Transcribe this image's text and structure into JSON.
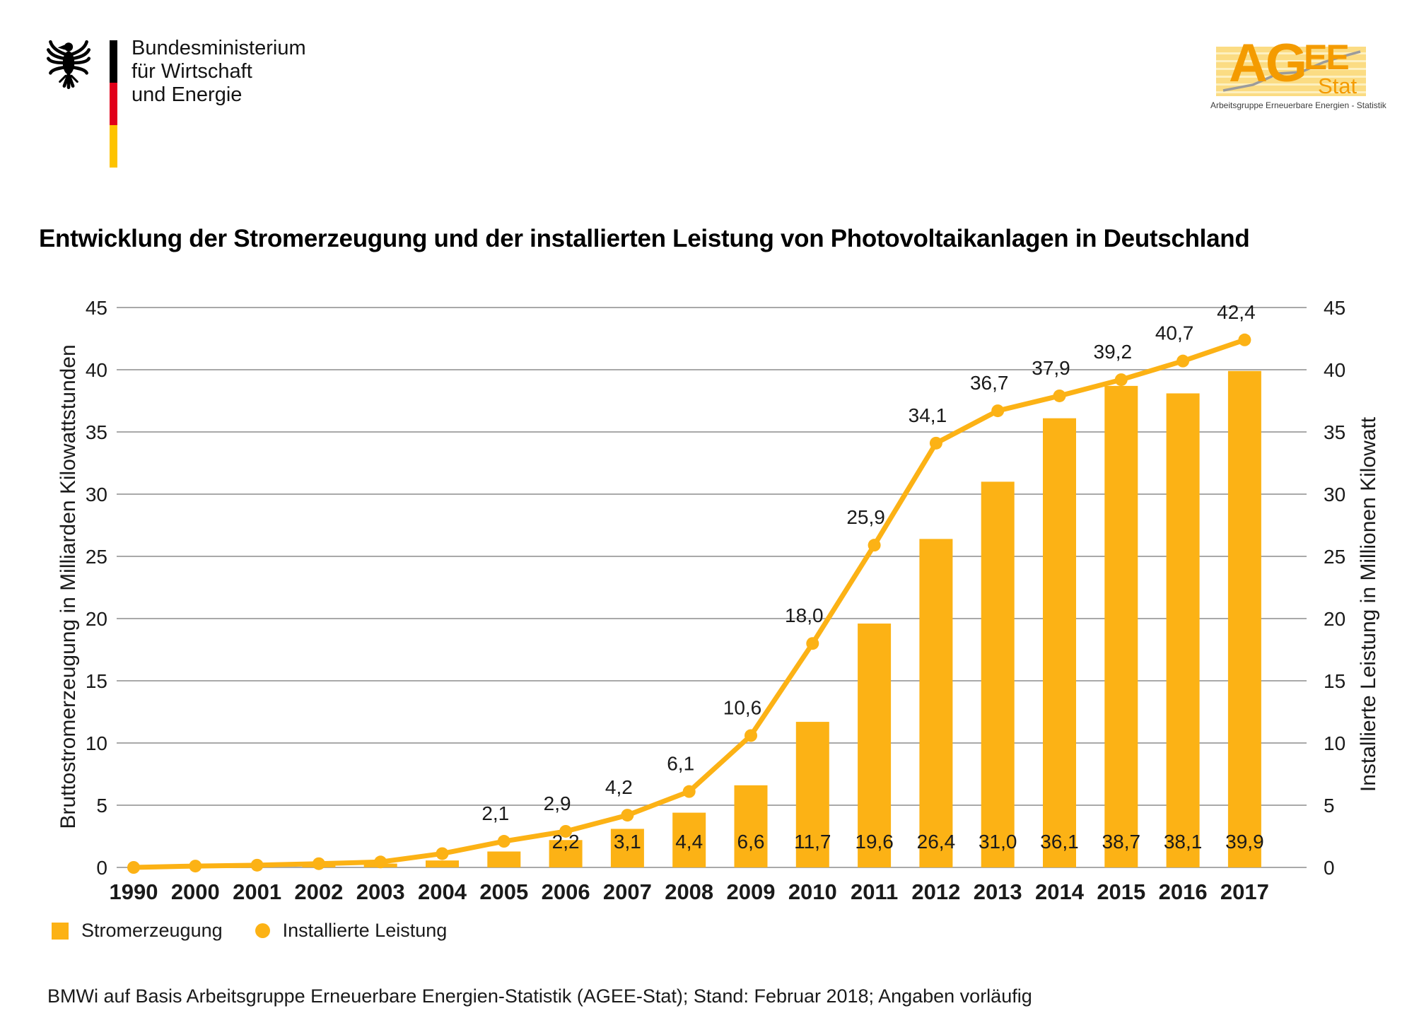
{
  "header": {
    "ministry_logo": {
      "lines": [
        "Bundesministerium",
        "für Wirtschaft",
        "und Energie"
      ]
    },
    "agee_logo": {
      "text_ag": "AG",
      "text_ee": "EE",
      "text_stat": "Stat",
      "caption": "Arbeitsgruppe Erneuerbare Energien - Statistik"
    }
  },
  "title": "Entwicklung der Stromerzeugung und der installierten Leistung von Photovoltaikanlagen in Deutschland",
  "chart_data": {
    "type": "bar+line",
    "categories": [
      "1990",
      "2000",
      "2001",
      "2002",
      "2003",
      "2004",
      "2005",
      "2006",
      "2007",
      "2008",
      "2009",
      "2010",
      "2011",
      "2012",
      "2013",
      "2014",
      "2015",
      "2016",
      "2017"
    ],
    "series": [
      {
        "name": "Stromerzeugung",
        "type": "bar",
        "axis": "left",
        "values": [
          0.0,
          0.06,
          0.08,
          0.16,
          0.31,
          0.56,
          1.28,
          2.2,
          3.1,
          4.4,
          6.6,
          11.7,
          19.6,
          26.4,
          31.0,
          36.1,
          38.7,
          38.1,
          39.9
        ],
        "labels": [
          "",
          "",
          "",
          "",
          "",
          "",
          "",
          "2,2",
          "3,1",
          "4,4",
          "6,6",
          "11,7",
          "19,6",
          "26,4",
          "31,0",
          "36,1",
          "38,7",
          "38,1",
          "39,9"
        ]
      },
      {
        "name": "Installierte Leistung",
        "type": "line",
        "axis": "right",
        "values": [
          0.0,
          0.11,
          0.18,
          0.3,
          0.44,
          1.11,
          2.1,
          2.9,
          4.2,
          6.1,
          10.6,
          18.0,
          25.9,
          34.1,
          36.7,
          37.9,
          39.2,
          40.7,
          42.4
        ],
        "labels": [
          "",
          "",
          "",
          "",
          "",
          "",
          "2,1",
          "2,9",
          "4,2",
          "6,1",
          "10,6",
          "18,0",
          "25,9",
          "34,1",
          "36,7",
          "37,9",
          "39,2",
          "40,7",
          "42,4"
        ]
      }
    ],
    "ylabel_left": "Bruttostromerzeugung in Milliarden Kilowattstunden",
    "ylabel_right": "Installierte Leistung in Millionen Kilowatt",
    "ylim": [
      0,
      45
    ],
    "ytick_step": 5,
    "grid": true,
    "legend_position": "bottom-left",
    "colors": {
      "bar": "#fcb215",
      "line": "#fcb215",
      "grid": "#a9a9a9",
      "text": "#1a1a1a"
    }
  },
  "legend": {
    "items": [
      {
        "label": "Stromerzeugung",
        "marker": "square"
      },
      {
        "label": "Installierte Leistung",
        "marker": "dot"
      }
    ]
  },
  "footer": "BMWi auf Basis Arbeitsgruppe Erneuerbare Energien-Statistik (AGEE-Stat); Stand: Februar 2018; Angaben vorläufig"
}
